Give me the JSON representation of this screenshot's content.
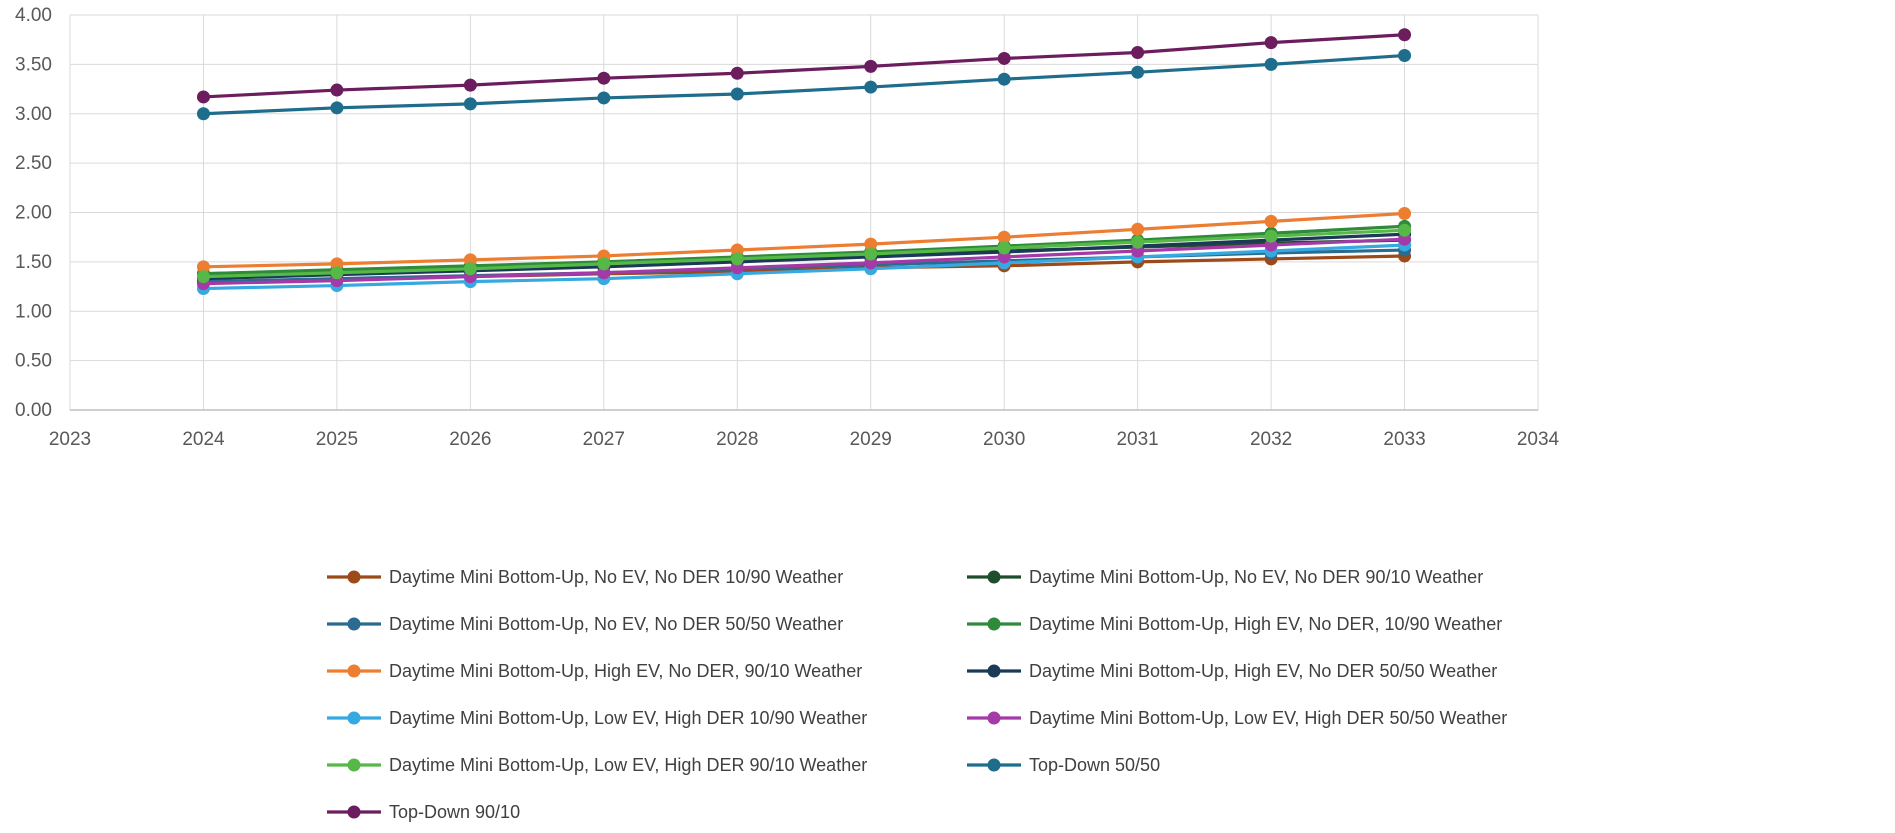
{
  "chart_data": {
    "type": "line",
    "x": [
      2024,
      2025,
      2026,
      2027,
      2028,
      2029,
      2030,
      2031,
      2032,
      2033
    ],
    "xlim": [
      2023,
      2034
    ],
    "xticks": [
      "2023",
      "2024",
      "2025",
      "2026",
      "2027",
      "2028",
      "2029",
      "2030",
      "2031",
      "2032",
      "2033",
      "2034"
    ],
    "ylim": [
      0,
      4
    ],
    "yticks": [
      "0.00",
      "0.50",
      "1.00",
      "1.50",
      "2.00",
      "2.50",
      "3.00",
      "3.50",
      "4.00"
    ],
    "grid": true,
    "legend_position": "bottom",
    "series": [
      {
        "name": "Daytime Mini Bottom-Up, No EV, No DER 10/90 Weather",
        "color": "#9c4a1a",
        "values": [
          1.3,
          1.32,
          1.35,
          1.38,
          1.4,
          1.44,
          1.46,
          1.5,
          1.53,
          1.56
        ]
      },
      {
        "name": "Daytime Mini Bottom-Up, No EV, No DER 90/10 Weather",
        "color": "#1f4e2c",
        "values": [
          1.38,
          1.41,
          1.45,
          1.49,
          1.53,
          1.57,
          1.61,
          1.65,
          1.69,
          1.72
        ]
      },
      {
        "name": "Daytime Mini Bottom-Up, No EV, No DER 50/50 Weather",
        "color": "#2a6b8f",
        "values": [
          1.3,
          1.33,
          1.36,
          1.39,
          1.43,
          1.47,
          1.51,
          1.55,
          1.59,
          1.62
        ]
      },
      {
        "name": "Daytime Mini Bottom-Up, High EV, No DER, 10/90 Weather",
        "color": "#2e8b3a",
        "values": [
          1.38,
          1.42,
          1.46,
          1.5,
          1.55,
          1.6,
          1.66,
          1.72,
          1.79,
          1.86
        ]
      },
      {
        "name": "Daytime Mini Bottom-Up, High EV, No DER, 90/10 Weather",
        "color": "#ed7d31",
        "values": [
          1.45,
          1.48,
          1.52,
          1.56,
          1.62,
          1.68,
          1.75,
          1.83,
          1.91,
          1.99
        ]
      },
      {
        "name": "Daytime Mini Bottom-Up, High EV, No DER 50/50 Weather",
        "color": "#1b3a57",
        "values": [
          1.33,
          1.37,
          1.41,
          1.45,
          1.5,
          1.55,
          1.6,
          1.66,
          1.72,
          1.78
        ]
      },
      {
        "name": "Daytime Mini Bottom-Up, Low EV, High DER 10/90 Weather",
        "color": "#35a9e0",
        "values": [
          1.23,
          1.26,
          1.3,
          1.33,
          1.38,
          1.43,
          1.49,
          1.55,
          1.61,
          1.67
        ]
      },
      {
        "name": "Daytime Mini Bottom-Up, Low EV, High DER 50/50 Weather",
        "color": "#a43aa8",
        "values": [
          1.28,
          1.31,
          1.35,
          1.39,
          1.44,
          1.49,
          1.55,
          1.61,
          1.67,
          1.73
        ]
      },
      {
        "name": "Daytime Mini Bottom-Up, Low EV, High DER 90/10 Weather",
        "color": "#56b846",
        "values": [
          1.35,
          1.39,
          1.43,
          1.48,
          1.53,
          1.58,
          1.64,
          1.7,
          1.76,
          1.82
        ]
      },
      {
        "name": "Top-Down 50/50",
        "color": "#1f6d8c",
        "values": [
          3.0,
          3.06,
          3.1,
          3.16,
          3.2,
          3.27,
          3.35,
          3.42,
          3.5,
          3.59
        ]
      },
      {
        "name": "Top-Down 90/10",
        "color": "#6b1d5e",
        "values": [
          3.17,
          3.24,
          3.29,
          3.36,
          3.41,
          3.48,
          3.56,
          3.62,
          3.72,
          3.8
        ]
      }
    ]
  }
}
